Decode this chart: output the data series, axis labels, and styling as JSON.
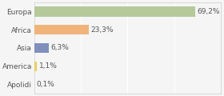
{
  "categories": [
    "Europa",
    "Africa",
    "Asia",
    "America",
    "Apolidi"
  ],
  "values": [
    69.2,
    23.3,
    6.3,
    1.1,
    0.1
  ],
  "labels": [
    "69,2%",
    "23,3%",
    "6,3%",
    "1,1%",
    "0,1%"
  ],
  "bar_colors": [
    "#b5c99a",
    "#f0b47a",
    "#8090bb",
    "#e8d060",
    "#cccccc"
  ],
  "background_color": "#f5f5f5",
  "plot_bg": "#f5f5f5",
  "xlim": [
    0,
    80
  ],
  "label_fontsize": 6.5,
  "tick_fontsize": 6.5,
  "grid_color": "#ffffff",
  "grid_positions": [
    0,
    20,
    40,
    60,
    80
  ],
  "bar_height": 0.55
}
